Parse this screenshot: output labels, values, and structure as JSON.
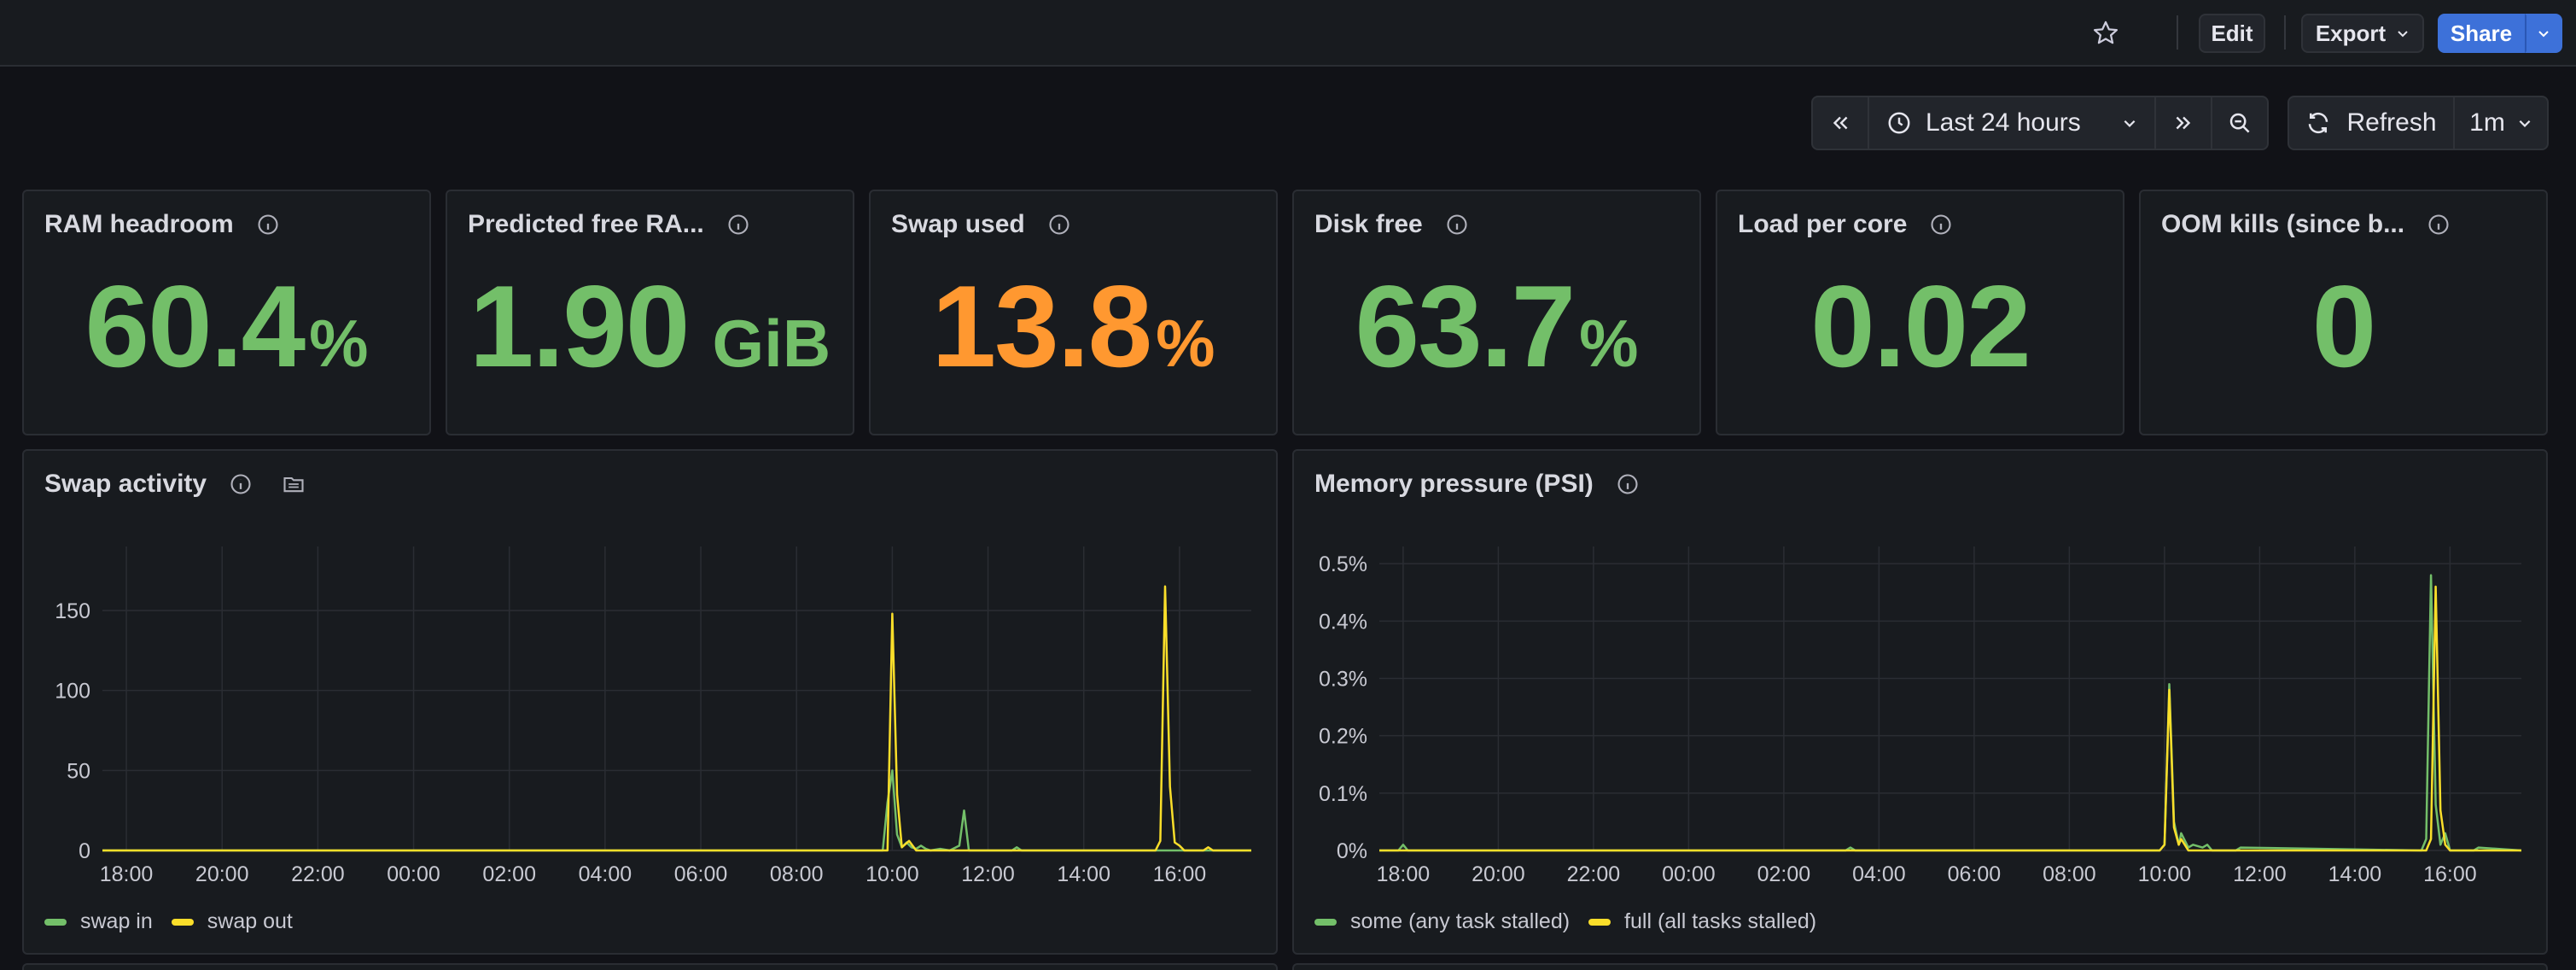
{
  "toolbar": {
    "edit_label": "Edit",
    "export_label": "Export",
    "share_label": "Share",
    "time_range": "Last 24 hours",
    "refresh_label": "Refresh",
    "refresh_interval": "1m"
  },
  "stats": [
    {
      "title": "RAM headroom",
      "value": "60.4",
      "unit": "%",
      "color": "#73bf69"
    },
    {
      "title": "Predicted free RA...",
      "value": "1.90",
      "unit": "GiB",
      "color": "#73bf69"
    },
    {
      "title": "Swap used",
      "value": "13.8",
      "unit": "%",
      "color": "#ff9830"
    },
    {
      "title": "Disk free",
      "value": "63.7",
      "unit": "%",
      "color": "#73bf69"
    },
    {
      "title": "Load per core",
      "value": "0.02",
      "unit": "",
      "color": "#73bf69"
    },
    {
      "title": "OOM kills (since b...",
      "value": "0",
      "unit": "",
      "color": "#73bf69"
    }
  ],
  "charts": {
    "swap": {
      "title": "Swap activity",
      "legend": [
        "swap in",
        "swap out"
      ]
    },
    "psi": {
      "title": "Memory pressure (PSI)",
      "legend": [
        "some (any task stalled)",
        "full (all tasks stalled)"
      ]
    }
  },
  "chart_data": [
    {
      "type": "line",
      "title": "Swap activity",
      "x_ticks": [
        "18:00",
        "20:00",
        "22:00",
        "00:00",
        "02:00",
        "04:00",
        "06:00",
        "08:00",
        "10:00",
        "12:00",
        "14:00",
        "16:00"
      ],
      "y_ticks": [
        "0",
        "50",
        "100",
        "150"
      ],
      "ylim": [
        0,
        190
      ],
      "xlim_hours": [
        -0.5,
        23.5
      ],
      "colors": {
        "swap in": "#73bf69",
        "swap out": "#fade2a"
      },
      "series": [
        {
          "name": "swap in",
          "x": [
            -0.5,
            15.8,
            15.9,
            16.0,
            16.1,
            16.2,
            16.3,
            16.4,
            16.5,
            16.6,
            16.7,
            16.8,
            17.0,
            17.2,
            17.4,
            17.5,
            17.6,
            18.5,
            18.6,
            18.7,
            23.5
          ],
          "y": [
            0,
            0,
            30,
            50,
            10,
            2,
            5,
            2,
            1,
            3,
            1,
            0,
            1,
            0,
            3,
            25,
            0,
            0,
            2,
            0,
            0
          ]
        },
        {
          "name": "swap out",
          "x": [
            -0.5,
            15.9,
            16.0,
            16.1,
            16.2,
            16.35,
            16.5,
            16.8,
            21.5,
            21.6,
            21.7,
            21.8,
            21.9,
            22.0,
            22.1,
            22.5,
            22.6,
            22.7,
            23.5
          ],
          "y": [
            0,
            0,
            148,
            35,
            2,
            6,
            0,
            0,
            0,
            6,
            165,
            40,
            5,
            3,
            0,
            0,
            2,
            0,
            0
          ]
        }
      ]
    },
    {
      "type": "line",
      "title": "Memory pressure (PSI)",
      "x_ticks": [
        "18:00",
        "20:00",
        "22:00",
        "00:00",
        "02:00",
        "04:00",
        "06:00",
        "08:00",
        "10:00",
        "12:00",
        "14:00",
        "16:00"
      ],
      "y_ticks": [
        "0%",
        "0.1%",
        "0.2%",
        "0.3%",
        "0.4%",
        "0.5%"
      ],
      "ylim": [
        0,
        0.53
      ],
      "xlim_hours": [
        -0.5,
        23.5
      ],
      "colors": {
        "some (any task stalled)": "#73bf69",
        "full (all tasks stalled)": "#fade2a"
      },
      "series": [
        {
          "name": "some (any task stalled)",
          "x": [
            -0.5,
            -0.1,
            0.0,
            0.1,
            9.3,
            9.4,
            9.5,
            15.9,
            16.0,
            16.1,
            16.2,
            16.3,
            16.35,
            16.5,
            16.6,
            16.8,
            16.9,
            17.0,
            17.5,
            17.6,
            21.4,
            21.5,
            21.6,
            21.7,
            21.8,
            21.9,
            22.0,
            22.5,
            22.6,
            23.5
          ],
          "y": [
            0,
            0,
            0.01,
            0,
            0,
            0.005,
            0,
            0,
            0.01,
            0.29,
            0.05,
            0.01,
            0.03,
            0.005,
            0.01,
            0.005,
            0.01,
            0,
            0,
            0.005,
            0,
            0.02,
            0.48,
            0.08,
            0.01,
            0.03,
            0,
            0,
            0.005,
            0
          ]
        },
        {
          "name": "full (all tasks stalled)",
          "x": [
            -0.5,
            15.9,
            16.0,
            16.1,
            16.2,
            16.3,
            16.35,
            16.5,
            21.5,
            21.6,
            21.7,
            21.8,
            21.9,
            22.0,
            23.5
          ],
          "y": [
            0,
            0,
            0.01,
            0.28,
            0.04,
            0.01,
            0.02,
            0,
            0,
            0.02,
            0.46,
            0.07,
            0.01,
            0,
            0
          ]
        }
      ]
    }
  ]
}
